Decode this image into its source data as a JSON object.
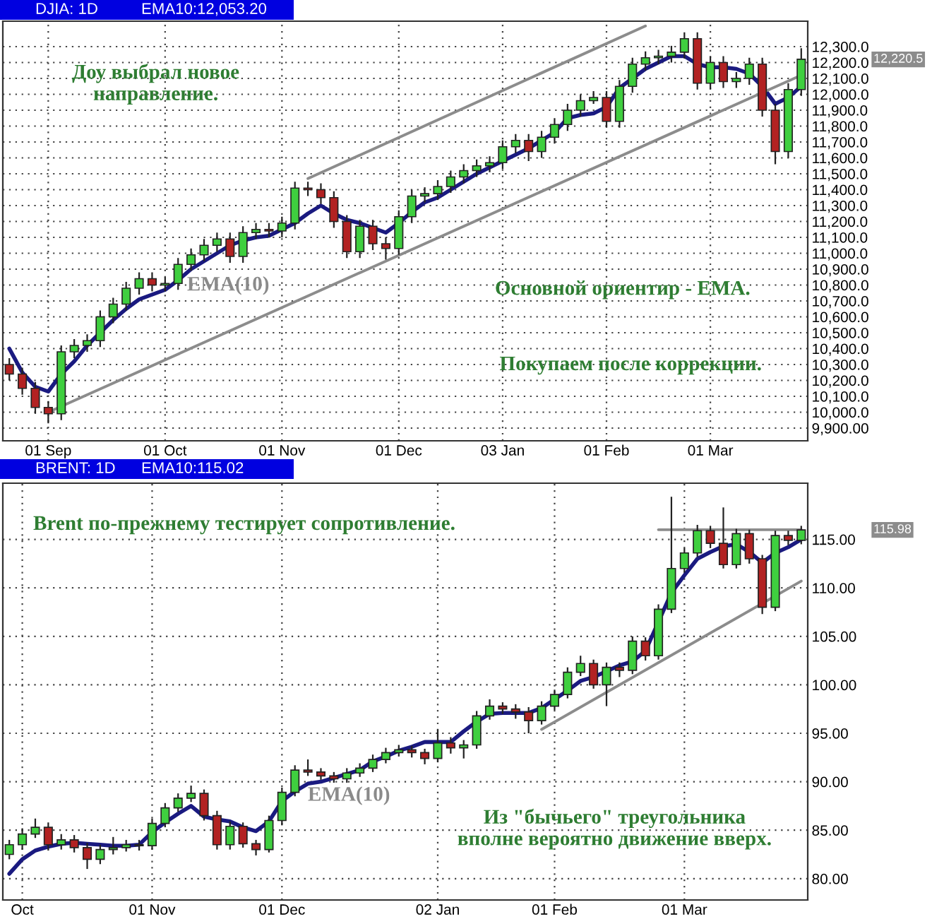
{
  "chart_data": [
    {
      "type": "candlestick",
      "title": "DJIA: 1D",
      "subtitle": "EMA10:12,053.20",
      "categories": [
        null,
        null,
        null,
        "01 Sep",
        null,
        null,
        null,
        null,
        null,
        null,
        null,
        null,
        "01 Oct",
        null,
        null,
        null,
        null,
        null,
        null,
        null,
        null,
        "01 Nov",
        null,
        null,
        null,
        null,
        null,
        null,
        null,
        null,
        "01 Dec",
        null,
        null,
        null,
        null,
        null,
        null,
        null,
        "03 Jan",
        null,
        null,
        null,
        null,
        null,
        null,
        null,
        "01 Feb",
        null,
        null,
        null,
        null,
        null,
        null,
        null,
        "01 Mar",
        null,
        null,
        null,
        null,
        null,
        null,
        null
      ],
      "ohlc": [
        [
          10300,
          10340,
          10200,
          10240
        ],
        [
          10240,
          10280,
          10110,
          10150
        ],
        [
          10150,
          10190,
          9990,
          10030
        ],
        [
          10030,
          10070,
          9930,
          9990
        ],
        [
          9990,
          10420,
          9950,
          10380
        ],
        [
          10380,
          10460,
          10340,
          10420
        ],
        [
          10420,
          10490,
          10380,
          10450
        ],
        [
          10450,
          10640,
          10410,
          10600
        ],
        [
          10600,
          10720,
          10560,
          10680
        ],
        [
          10680,
          10820,
          10640,
          10780
        ],
        [
          10780,
          10880,
          10740,
          10840
        ],
        [
          10840,
          10880,
          10760,
          10800
        ],
        [
          10800,
          10850,
          10760,
          10810
        ],
        [
          10810,
          10970,
          10770,
          10930
        ],
        [
          10930,
          11030,
          10890,
          10990
        ],
        [
          10990,
          11090,
          10950,
          11050
        ],
        [
          11050,
          11130,
          11010,
          11090
        ],
        [
          11090,
          11130,
          10940,
          10980
        ],
        [
          10980,
          11170,
          10940,
          11130
        ],
        [
          11130,
          11190,
          11090,
          11150
        ],
        [
          11150,
          11190,
          11100,
          11140
        ],
        [
          11140,
          11230,
          11100,
          11190
        ],
        [
          11190,
          11450,
          11150,
          11410
        ],
        [
          11410,
          11450,
          11360,
          11400
        ],
        [
          11400,
          11440,
          11310,
          11350
        ],
        [
          11350,
          11390,
          11160,
          11200
        ],
        [
          11200,
          11240,
          10970,
          11010
        ],
        [
          11010,
          11210,
          10970,
          11170
        ],
        [
          11170,
          11210,
          11020,
          11060
        ],
        [
          11060,
          11100,
          10960,
          11030
        ],
        [
          11030,
          11270,
          10990,
          11230
        ],
        [
          11230,
          11400,
          11190,
          11360
        ],
        [
          11360,
          11415,
          11320,
          11375
        ],
        [
          11375,
          11460,
          11335,
          11420
        ],
        [
          11420,
          11520,
          11380,
          11480
        ],
        [
          11480,
          11560,
          11440,
          11520
        ],
        [
          11520,
          11590,
          11480,
          11550
        ],
        [
          11550,
          11610,
          11510,
          11570
        ],
        [
          11570,
          11710,
          11530,
          11670
        ],
        [
          11670,
          11750,
          11630,
          11710
        ],
        [
          11710,
          11750,
          11580,
          11640
        ],
        [
          11640,
          11770,
          11600,
          11730
        ],
        [
          11730,
          11850,
          11690,
          11810
        ],
        [
          11810,
          11940,
          11770,
          11900
        ],
        [
          11900,
          12000,
          11860,
          11960
        ],
        [
          11960,
          12020,
          11940,
          11980
        ],
        [
          11980,
          12020,
          11790,
          11830
        ],
        [
          11830,
          12090,
          11790,
          12050
        ],
        [
          12050,
          12230,
          12010,
          12190
        ],
        [
          12190,
          12270,
          12150,
          12230
        ],
        [
          12230,
          12280,
          12190,
          12240
        ],
        [
          12240,
          12305,
          12200,
          12265
        ],
        [
          12265,
          12390,
          12225,
          12350
        ],
        [
          12350,
          12390,
          12030,
          12070
        ],
        [
          12070,
          12240,
          12030,
          12200
        ],
        [
          12200,
          12240,
          12040,
          12080
        ],
        [
          12080,
          12140,
          12040,
          12100
        ],
        [
          12100,
          12230,
          12060,
          12190
        ],
        [
          12190,
          12230,
          11860,
          11900
        ],
        [
          11900,
          11940,
          11560,
          11640
        ],
        [
          11640,
          12070,
          11600,
          12030
        ],
        [
          12030,
          12290,
          11990,
          12220.5
        ]
      ],
      "colors": [
        "#b22222",
        "#b22222",
        "#b22222",
        "#b22222",
        "#3fcf3f",
        "#3fcf3f",
        "#3fcf3f",
        "#3fcf3f",
        "#3fcf3f",
        "#3fcf3f",
        "#3fcf3f",
        "#b22222",
        "#3fcf3f",
        "#3fcf3f",
        "#3fcf3f",
        "#3fcf3f",
        "#3fcf3f",
        "#b22222",
        "#3fcf3f",
        "#3fcf3f",
        "#b22222",
        "#3fcf3f",
        "#3fcf3f",
        "#b22222",
        "#b22222",
        "#b22222",
        "#b22222",
        "#3fcf3f",
        "#b22222",
        "#b22222",
        "#3fcf3f",
        "#3fcf3f",
        "#3fcf3f",
        "#3fcf3f",
        "#3fcf3f",
        "#3fcf3f",
        "#3fcf3f",
        "#3fcf3f",
        "#3fcf3f",
        "#3fcf3f",
        "#b22222",
        "#3fcf3f",
        "#3fcf3f",
        "#3fcf3f",
        "#3fcf3f",
        "#3fcf3f",
        "#b22222",
        "#3fcf3f",
        "#3fcf3f",
        "#3fcf3f",
        "#3fcf3f",
        "#3fcf3f",
        "#3fcf3f",
        "#b22222",
        "#3fcf3f",
        "#b22222",
        "#3fcf3f",
        "#3fcf3f",
        "#b22222",
        "#b22222",
        "#3fcf3f",
        "#3fcf3f"
      ],
      "series": [
        {
          "type": "line",
          "color": "#1a1a80",
          "values": [
            10400,
            10250,
            10160,
            10130,
            10240,
            10320,
            10420,
            10500,
            10580,
            10650,
            10710,
            10740,
            10770,
            10830,
            10900,
            10950,
            11000,
            11050,
            11080,
            11100,
            11110,
            11150,
            11190,
            11250,
            11300,
            11250,
            11210,
            11190,
            11160,
            11130,
            11190,
            11260,
            11320,
            11350,
            11400,
            11450,
            11500,
            11540,
            11580,
            11620,
            11660,
            11710,
            11760,
            11850,
            11870,
            11880,
            11920,
            12040,
            12100,
            12160,
            12200,
            12240,
            12240,
            12190,
            12170,
            12170,
            12160,
            12130,
            12050,
            11940,
            11980,
            12050
          ]
        },
        {
          "type": "line",
          "color": "#8c8c8c",
          "values": [
            null,
            null,
            null,
            null,
            null,
            null,
            null,
            null,
            null,
            null,
            null,
            null,
            null,
            null,
            null,
            null,
            null,
            null,
            null,
            null,
            null,
            null,
            null,
            11470,
            null,
            null,
            null,
            null,
            null,
            null,
            null,
            null,
            null,
            null,
            null,
            null,
            null,
            null,
            null,
            null,
            null,
            null,
            null,
            null,
            null,
            null,
            null,
            null,
            null,
            12430,
            null,
            null,
            null,
            null,
            null,
            null,
            null,
            null,
            null,
            null,
            null,
            null
          ]
        },
        {
          "type": "line",
          "color": "#8c8c8c",
          "values": [
            null,
            null,
            null,
            10000,
            null,
            null,
            null,
            null,
            null,
            null,
            null,
            null,
            null,
            null,
            null,
            null,
            null,
            null,
            null,
            null,
            null,
            null,
            null,
            null,
            null,
            null,
            null,
            null,
            null,
            null,
            null,
            null,
            null,
            null,
            null,
            null,
            null,
            null,
            null,
            null,
            null,
            null,
            null,
            null,
            null,
            null,
            null,
            null,
            null,
            null,
            null,
            null,
            null,
            null,
            null,
            null,
            null,
            null,
            null,
            null,
            null,
            12120
          ]
        }
      ],
      "ylim": [
        9820,
        12460
      ],
      "yticks": [
        {
          "value": 9900,
          "label": "9,900.00"
        },
        {
          "value": 10000,
          "label": "10,000.0"
        },
        {
          "value": 10100,
          "label": "10,100.0"
        },
        {
          "value": 10200,
          "label": "10,200.0"
        },
        {
          "value": 10300,
          "label": "10,300.0"
        },
        {
          "value": 10400,
          "label": "10,400.0"
        },
        {
          "value": 10500,
          "label": "10,500.0"
        },
        {
          "value": 10600,
          "label": "10,600.0"
        },
        {
          "value": 10700,
          "label": "10,700.0"
        },
        {
          "value": 10800,
          "label": "10,800.0"
        },
        {
          "value": 10900,
          "label": "10,900.0"
        },
        {
          "value": 11000,
          "label": "11,000.0"
        },
        {
          "value": 11100,
          "label": "11,100.0"
        },
        {
          "value": 11200,
          "label": "11,200.0"
        },
        {
          "value": 11300,
          "label": "11,300.0"
        },
        {
          "value": 11400,
          "label": "11,400.0"
        },
        {
          "value": 11500,
          "label": "11,500.0"
        },
        {
          "value": 11600,
          "label": "11,600.0"
        },
        {
          "value": 11700,
          "label": "11,700.0"
        },
        {
          "value": 11800,
          "label": "11,800.0"
        },
        {
          "value": 11900,
          "label": "11,900.0"
        },
        {
          "value": 12000,
          "label": "12,000.0"
        },
        {
          "value": 12100,
          "label": "12,100.0"
        },
        {
          "value": 12200,
          "label": "12,200.0"
        },
        {
          "value": 12300,
          "label": "12,300.0"
        }
      ],
      "grid": true,
      "annotations": [
        "Доу выбрал новое\nнаправление.",
        "EMA(10)",
        "Основной ориентир - EMA.",
        "Покупаем после коррекции.",
        "12,220.5"
      ]
    },
    {
      "type": "candlestick",
      "title": "BRENT: 1D",
      "subtitle": "EMA10:115.02",
      "categories": [
        null,
        "Oct",
        null,
        null,
        null,
        null,
        null,
        null,
        null,
        null,
        null,
        "01 Nov",
        null,
        null,
        null,
        null,
        null,
        null,
        null,
        null,
        null,
        "01 Dec",
        null,
        null,
        null,
        null,
        null,
        null,
        null,
        null,
        null,
        null,
        null,
        "02 Jan",
        null,
        null,
        null,
        null,
        null,
        null,
        null,
        null,
        "01 Feb",
        null,
        null,
        null,
        null,
        null,
        null,
        null,
        null,
        null,
        "01 Mar",
        null,
        null,
        null,
        null,
        null,
        null,
        null,
        null,
        null
      ],
      "ohlc": [
        [
          82.5,
          84.0,
          82.0,
          83.5
        ],
        [
          83.5,
          85.2,
          83.0,
          84.6
        ],
        [
          84.6,
          86.2,
          84.2,
          85.3
        ],
        [
          85.3,
          85.8,
          82.9,
          83.5
        ],
        [
          83.5,
          84.6,
          83.0,
          84.0
        ],
        [
          84.0,
          84.5,
          82.7,
          83.2
        ],
        [
          83.2,
          83.7,
          81.0,
          82.0
        ],
        [
          82.0,
          83.5,
          81.5,
          83.0
        ],
        [
          83.0,
          84.3,
          82.5,
          83.2
        ],
        [
          83.2,
          84.0,
          82.8,
          83.5
        ],
        [
          83.5,
          84.0,
          82.9,
          83.4
        ],
        [
          83.4,
          86.2,
          83.0,
          85.7
        ],
        [
          85.7,
          87.8,
          85.3,
          87.3
        ],
        [
          87.3,
          88.8,
          86.9,
          88.3
        ],
        [
          88.3,
          89.6,
          87.9,
          88.8
        ],
        [
          88.8,
          89.2,
          86.0,
          86.5
        ],
        [
          86.5,
          87.0,
          83.0,
          83.5
        ],
        [
          83.5,
          85.9,
          83.0,
          85.4
        ],
        [
          85.4,
          85.8,
          83.2,
          83.6
        ],
        [
          83.6,
          84.0,
          82.4,
          83.0
        ],
        [
          83.0,
          86.5,
          82.7,
          86.0
        ],
        [
          86.0,
          89.4,
          85.5,
          88.9
        ],
        [
          88.9,
          91.7,
          88.5,
          91.2
        ],
        [
          91.2,
          92.3,
          90.6,
          91.0
        ],
        [
          91.0,
          91.4,
          90.2,
          90.6
        ],
        [
          90.6,
          91.0,
          89.9,
          90.3
        ],
        [
          90.3,
          91.4,
          89.9,
          90.9
        ],
        [
          90.9,
          91.9,
          90.5,
          91.4
        ],
        [
          91.4,
          92.8,
          91.0,
          92.3
        ],
        [
          92.3,
          93.5,
          91.9,
          93.0
        ],
        [
          93.0,
          93.8,
          92.6,
          93.3
        ],
        [
          93.3,
          93.7,
          92.5,
          93.0
        ],
        [
          93.0,
          93.4,
          91.8,
          92.4
        ],
        [
          92.4,
          95.4,
          92.0,
          94.0
        ],
        [
          94.0,
          94.6,
          92.9,
          93.5
        ],
        [
          93.5,
          94.3,
          92.4,
          93.8
        ],
        [
          93.8,
          97.3,
          93.4,
          96.8
        ],
        [
          96.8,
          98.5,
          96.4,
          97.8
        ],
        [
          97.8,
          98.2,
          97.0,
          97.5
        ],
        [
          97.5,
          98.0,
          96.5,
          97.2
        ],
        [
          97.2,
          97.7,
          95.0,
          96.3
        ],
        [
          96.3,
          98.3,
          95.9,
          97.8
        ],
        [
          97.8,
          99.5,
          97.4,
          99.0
        ],
        [
          99.0,
          101.8,
          98.6,
          101.3
        ],
        [
          101.3,
          103.0,
          100.9,
          102.2
        ],
        [
          102.2,
          102.6,
          99.6,
          100.0
        ],
        [
          100.0,
          102.3,
          97.8,
          101.8
        ],
        [
          101.8,
          102.3,
          100.8,
          101.5
        ],
        [
          101.5,
          105.0,
          101.1,
          104.5
        ],
        [
          104.5,
          104.9,
          102.5,
          103.0
        ],
        [
          103.0,
          108.3,
          102.6,
          107.8
        ],
        [
          107.8,
          119.4,
          107.4,
          112.0
        ],
        [
          112.0,
          114.1,
          111.6,
          113.6
        ],
        [
          113.6,
          116.5,
          113.2,
          115.9
        ],
        [
          115.9,
          116.4,
          114.1,
          114.6
        ],
        [
          114.6,
          118.3,
          112.0,
          112.4
        ],
        [
          112.4,
          116.1,
          112.0,
          115.6
        ],
        [
          115.6,
          116.0,
          112.5,
          113.0
        ],
        [
          113.0,
          113.4,
          107.3,
          108.0
        ],
        [
          108.0,
          115.9,
          107.6,
          115.4
        ],
        [
          115.4,
          115.9,
          114.4,
          114.9
        ],
        [
          114.9,
          116.4,
          114.5,
          115.98
        ]
      ],
      "colors": [
        "#3fcf3f",
        "#3fcf3f",
        "#3fcf3f",
        "#b22222",
        "#3fcf3f",
        "#b22222",
        "#b22222",
        "#3fcf3f",
        "#3fcf3f",
        "#3fcf3f",
        "#b22222",
        "#3fcf3f",
        "#3fcf3f",
        "#3fcf3f",
        "#3fcf3f",
        "#b22222",
        "#b22222",
        "#3fcf3f",
        "#b22222",
        "#b22222",
        "#3fcf3f",
        "#3fcf3f",
        "#3fcf3f",
        "#b22222",
        "#b22222",
        "#b22222",
        "#3fcf3f",
        "#3fcf3f",
        "#3fcf3f",
        "#3fcf3f",
        "#3fcf3f",
        "#b22222",
        "#b22222",
        "#3fcf3f",
        "#b22222",
        "#3fcf3f",
        "#3fcf3f",
        "#3fcf3f",
        "#b22222",
        "#b22222",
        "#b22222",
        "#3fcf3f",
        "#3fcf3f",
        "#3fcf3f",
        "#3fcf3f",
        "#b22222",
        "#3fcf3f",
        "#b22222",
        "#3fcf3f",
        "#b22222",
        "#3fcf3f",
        "#3fcf3f",
        "#3fcf3f",
        "#3fcf3f",
        "#b22222",
        "#b22222",
        "#3fcf3f",
        "#b22222",
        "#b22222",
        "#3fcf3f",
        "#b22222",
        "#3fcf3f"
      ],
      "series": [
        {
          "type": "line",
          "color": "#1a1a80",
          "values": [
            80.5,
            82,
            82.9,
            83.3,
            83.6,
            83.7,
            83.6,
            83.5,
            83.4,
            83.4,
            83.5,
            84.8,
            85.8,
            86.7,
            87.5,
            86.4,
            86.1,
            85.9,
            85.3,
            84.9,
            85.9,
            88,
            89,
            89.8,
            90,
            90.4,
            90.8,
            91.2,
            92.1,
            92.6,
            93.2,
            93.6,
            94.1,
            94.1,
            94.1,
            95.2,
            96.2,
            97,
            97.1,
            97.1,
            97.1,
            97.6,
            98.5,
            99.4,
            100.4,
            100.8,
            101.4,
            102,
            102.4,
            103.5,
            null,
            109.5,
            111.3,
            113,
            113.7,
            114.3,
            114.5,
            113.7,
            112.6,
            113.6,
            114.2,
            115
          ]
        },
        {
          "type": "line",
          "color": "#8c8c8c",
          "values": [
            null,
            null,
            null,
            null,
            null,
            null,
            null,
            null,
            null,
            null,
            null,
            null,
            null,
            null,
            null,
            null,
            null,
            null,
            null,
            null,
            null,
            null,
            null,
            null,
            null,
            null,
            null,
            null,
            null,
            null,
            null,
            null,
            null,
            null,
            null,
            null,
            null,
            null,
            null,
            null,
            null,
            95.4,
            null,
            null,
            null,
            null,
            null,
            null,
            null,
            null,
            null,
            null,
            null,
            null,
            null,
            null,
            null,
            null,
            null,
            null,
            null,
            110.7
          ]
        },
        {
          "type": "line",
          "color": "#8c8c8c",
          "values": [
            null,
            null,
            null,
            null,
            null,
            null,
            null,
            null,
            null,
            null,
            null,
            null,
            null,
            null,
            null,
            null,
            null,
            null,
            null,
            null,
            null,
            null,
            null,
            null,
            null,
            null,
            null,
            null,
            null,
            null,
            null,
            null,
            null,
            null,
            null,
            null,
            null,
            null,
            null,
            null,
            null,
            null,
            null,
            null,
            null,
            null,
            null,
            null,
            null,
            null,
            116,
            null,
            null,
            null,
            null,
            null,
            null,
            null,
            null,
            null,
            null,
            116
          ]
        }
      ],
      "ylim": [
        77.8,
        120.8
      ],
      "yticks": [
        {
          "value": 80,
          "label": "80.00"
        },
        {
          "value": 85,
          "label": "85.00"
        },
        {
          "value": 90,
          "label": "90.00"
        },
        {
          "value": 95,
          "label": "95.00"
        },
        {
          "value": 100,
          "label": "100.00"
        },
        {
          "value": 105,
          "label": "105.00"
        },
        {
          "value": 110,
          "label": "110.00"
        },
        {
          "value": 115,
          "label": "115.00"
        }
      ],
      "grid": true,
      "annotations": [
        "Brent по-прежнему тестирует сопротивление.",
        "EMA(10)",
        "Из \"бычьего\" треугольника\nвполне вероятно движение вверх.",
        "115.98"
      ]
    }
  ]
}
